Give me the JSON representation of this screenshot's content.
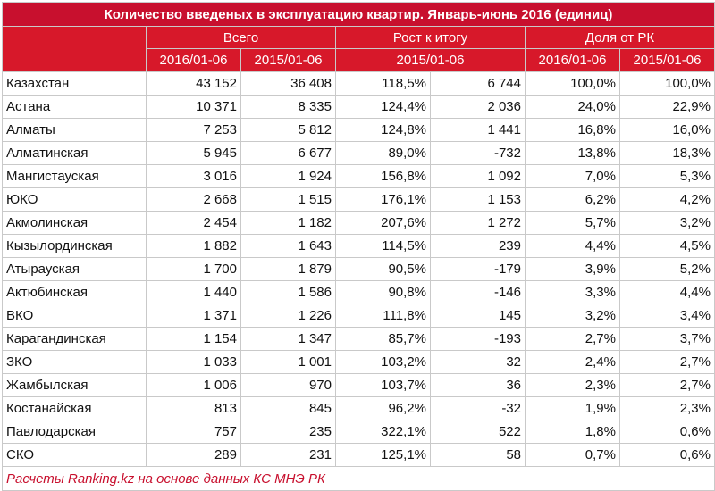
{
  "title": "Количество введеных в эксплуатацию квартир. Январь-июнь 2016 (единиц)",
  "headers": {
    "total_group": "Всего",
    "growth_group": "Рост к итогу",
    "share_group": "Доля от РК",
    "col_2016": "2016/01-06",
    "col_2015": "2015/01-06",
    "growth_period": "2015/01-06",
    "share_2016": "2016/01-06",
    "share_2015": "2015/01-06"
  },
  "rows": [
    {
      "region": "Казахстан",
      "v2016": "43 152",
      "v2015": "36 408",
      "growth_pct": "118,5%",
      "growth_abs": "6 744",
      "share2016": "100,0%",
      "share2015": "100,0%"
    },
    {
      "region": "Астана",
      "v2016": "10 371",
      "v2015": "8 335",
      "growth_pct": "124,4%",
      "growth_abs": "2 036",
      "share2016": "24,0%",
      "share2015": "22,9%"
    },
    {
      "region": "Алматы",
      "v2016": "7 253",
      "v2015": "5 812",
      "growth_pct": "124,8%",
      "growth_abs": "1 441",
      "share2016": "16,8%",
      "share2015": "16,0%"
    },
    {
      "region": "Алматинская",
      "v2016": "5 945",
      "v2015": "6 677",
      "growth_pct": "89,0%",
      "growth_abs": "-732",
      "share2016": "13,8%",
      "share2015": "18,3%"
    },
    {
      "region": "Мангистауская",
      "v2016": "3 016",
      "v2015": "1 924",
      "growth_pct": "156,8%",
      "growth_abs": "1 092",
      "share2016": "7,0%",
      "share2015": "5,3%"
    },
    {
      "region": "ЮКО",
      "v2016": "2 668",
      "v2015": "1 515",
      "growth_pct": "176,1%",
      "growth_abs": "1 153",
      "share2016": "6,2%",
      "share2015": "4,2%"
    },
    {
      "region": "Акмолинская",
      "v2016": "2 454",
      "v2015": "1 182",
      "growth_pct": "207,6%",
      "growth_abs": "1 272",
      "share2016": "5,7%",
      "share2015": "3,2%"
    },
    {
      "region": "Кызылординская",
      "v2016": "1 882",
      "v2015": "1 643",
      "growth_pct": "114,5%",
      "growth_abs": "239",
      "share2016": "4,4%",
      "share2015": "4,5%"
    },
    {
      "region": "Атырауская",
      "v2016": "1 700",
      "v2015": "1 879",
      "growth_pct": "90,5%",
      "growth_abs": "-179",
      "share2016": "3,9%",
      "share2015": "5,2%"
    },
    {
      "region": "Актюбинская",
      "v2016": "1 440",
      "v2015": "1 586",
      "growth_pct": "90,8%",
      "growth_abs": "-146",
      "share2016": "3,3%",
      "share2015": "4,4%"
    },
    {
      "region": "ВКО",
      "v2016": "1 371",
      "v2015": "1 226",
      "growth_pct": "111,8%",
      "growth_abs": "145",
      "share2016": "3,2%",
      "share2015": "3,4%"
    },
    {
      "region": "Карагандинская",
      "v2016": "1 154",
      "v2015": "1 347",
      "growth_pct": "85,7%",
      "growth_abs": "-193",
      "share2016": "2,7%",
      "share2015": "3,7%"
    },
    {
      "region": "ЗКО",
      "v2016": "1 033",
      "v2015": "1 001",
      "growth_pct": "103,2%",
      "growth_abs": "32",
      "share2016": "2,4%",
      "share2015": "2,7%"
    },
    {
      "region": "Жамбылская",
      "v2016": "1 006",
      "v2015": "970",
      "growth_pct": "103,7%",
      "growth_abs": "36",
      "share2016": "2,3%",
      "share2015": "2,7%"
    },
    {
      "region": "Костанайская",
      "v2016": "813",
      "v2015": "845",
      "growth_pct": "96,2%",
      "growth_abs": "-32",
      "share2016": "1,9%",
      "share2015": "2,3%"
    },
    {
      "region": "Павлодарская",
      "v2016": "757",
      "v2015": "235",
      "growth_pct": "322,1%",
      "growth_abs": "522",
      "share2016": "1,8%",
      "share2015": "0,6%"
    },
    {
      "region": "СКО",
      "v2016": "289",
      "v2015": "231",
      "growth_pct": "125,1%",
      "growth_abs": "58",
      "share2016": "0,7%",
      "share2015": "0,6%"
    }
  ],
  "footer": "Расчеты Ranking.kz на основе данных КС МНЭ РК",
  "colors": {
    "header_red": "#d7182a",
    "title_red": "#c8102e",
    "footer_text": "#c8102e"
  }
}
